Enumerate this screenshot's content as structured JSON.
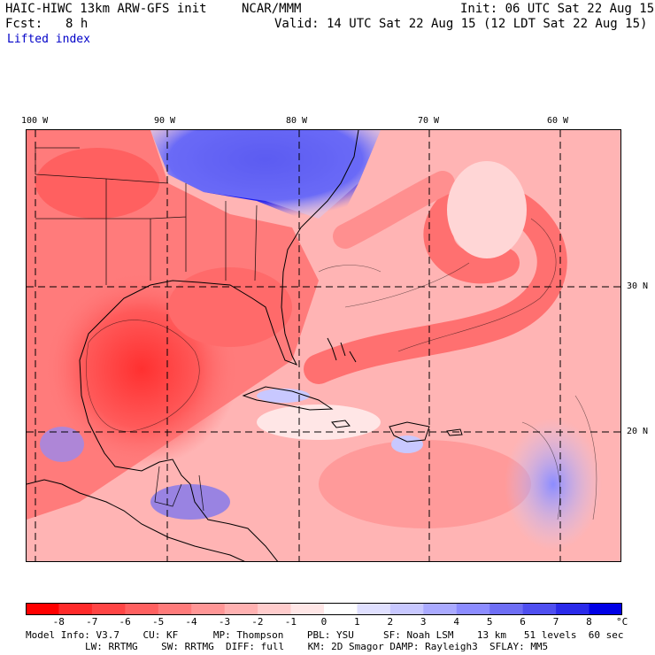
{
  "header": {
    "model_line": "HAIC-HIWC 13km ARW-GFS init",
    "org": "NCAR/MMM",
    "init": "Init: 06 UTC Sat 22 Aug 15",
    "fcst_label": "Fcst:",
    "fcst_value": "8 h",
    "valid": "Valid: 14 UTC Sat 22 Aug 15 (12 LDT Sat 22 Aug 15)",
    "field": "Lifted index"
  },
  "map": {
    "lon_labels": [
      "100 W",
      "90 W",
      "80 W",
      "70 W",
      "60 W"
    ],
    "lat_labels": [
      "30 N",
      "20 N"
    ],
    "colors": {
      "negative_max": "#ff0000",
      "positive_max": "#0000e6",
      "coast": "#000000"
    }
  },
  "colorbar": {
    "labels": [
      "-8",
      "-7",
      "-6",
      "-5",
      "-4",
      "-3",
      "-2",
      "-1",
      "0",
      "1",
      "2",
      "3",
      "4",
      "5",
      "6",
      "7",
      "8"
    ],
    "unit": "°C",
    "colors": [
      "#ff0000",
      "#ff2a2a",
      "#ff4545",
      "#ff6060",
      "#ff7b7b",
      "#ff9696",
      "#ffb1b1",
      "#ffcccc",
      "#ffe6e6",
      "#ffffff",
      "#e0e0ff",
      "#c8c8ff",
      "#aaaaff",
      "#8c8cff",
      "#6e6ef5",
      "#4f4ff0",
      "#2a2aea",
      "#0000e6"
    ]
  },
  "footer": {
    "line1": "Model Info: V3.7    CU: KF      MP: Thompson    PBL: YSU     SF: Noah LSM    13 km   51 levels  60 sec",
    "line2": "LW: RRTMG    SW: RRTMG  DIFF: full    KM: 2D Smagor DAMP: Rayleigh3  SFLAY: MM5"
  }
}
